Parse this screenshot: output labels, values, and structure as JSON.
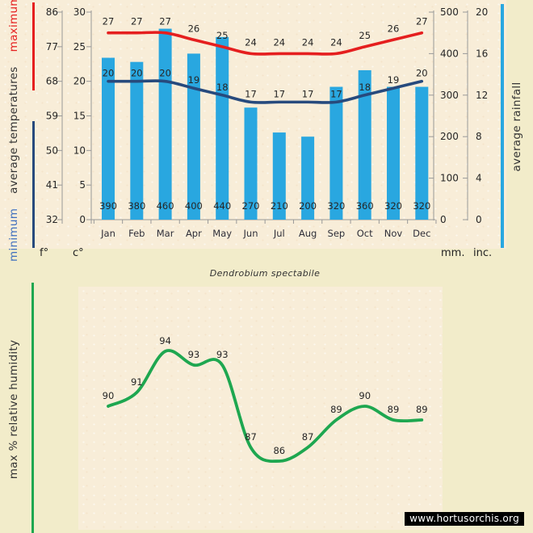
{
  "title_caption": "Dendrobium spectabile",
  "watermark": "www.hortusorchis.org",
  "colors": {
    "bar_blue": "#29a7e0",
    "max_red": "#e51f1f",
    "min_navy": "#274a7d",
    "humidity_green": "#1ea750",
    "minimum_label_blue": "#3f6fbe",
    "axis_gray": "#999999",
    "text_dark": "#262626",
    "month_text": "#2e2e38",
    "background": "#f2ecca",
    "plot_background": "#f8edd8",
    "watermark_bg": "#000000",
    "watermark_text": "#ffffff"
  },
  "top_chart": {
    "axis_title_left": {
      "minimum": "minimum",
      "middle": "average temperatures",
      "maximum": "maximum"
    },
    "axis_title_right": "average rainfall",
    "units": {
      "f": "f°",
      "c": "c°",
      "mm": "mm.",
      "inc": "inc."
    }
  },
  "bottom_chart": {
    "axis_title": "max % relative humidity"
  },
  "chart_data": [
    {
      "type": "bar",
      "subtype": "bar-line combo climate chart",
      "title": "Dendrobium spectabile",
      "categories": [
        "Jan",
        "Feb",
        "Mar",
        "Apr",
        "May",
        "Jun",
        "Jul",
        "Aug",
        "Sep",
        "Oct",
        "Nov",
        "Dec"
      ],
      "series": [
        {
          "name": "average rainfall (mm)",
          "kind": "bar",
          "values": [
            390,
            380,
            460,
            400,
            440,
            270,
            210,
            200,
            320,
            360,
            320,
            320
          ],
          "color": "#29a7e0"
        },
        {
          "name": "maximum average temperature (°C)",
          "kind": "line",
          "values": [
            27,
            27,
            27,
            26,
            25,
            24,
            24,
            24,
            24,
            25,
            26,
            27
          ],
          "color": "#e51f1f"
        },
        {
          "name": "minimum average temperature (°C)",
          "kind": "line",
          "values": [
            20,
            20,
            20,
            19,
            18,
            17,
            17,
            17,
            17,
            18,
            19,
            20
          ],
          "color": "#274a7d"
        }
      ],
      "axes": {
        "celsius_ticks": [
          30,
          25,
          20,
          15,
          10,
          5,
          0
        ],
        "fahrenheit_ticks": [
          86,
          77,
          68,
          59,
          50,
          41,
          32
        ],
        "mm_ticks": [
          500,
          400,
          300,
          200,
          100,
          0
        ],
        "inch_ticks": [
          20,
          16,
          12,
          8,
          4,
          0
        ],
        "celsius_range": [
          0,
          30
        ],
        "mm_range": [
          0,
          500
        ],
        "grid": false,
        "legend_position": "rotated axis titles left/right"
      }
    },
    {
      "type": "line",
      "name": "max % relative humidity",
      "categories": [
        "Jan",
        "Feb",
        "Mar",
        "Apr",
        "May",
        "Jun",
        "Jul",
        "Aug",
        "Sep",
        "Oct",
        "Nov",
        "Dec"
      ],
      "values": [
        90,
        91,
        94,
        93,
        93,
        87,
        86,
        87,
        89,
        90,
        89,
        89
      ],
      "color": "#1ea750",
      "ylim": [
        86,
        94
      ],
      "grid": false
    }
  ]
}
